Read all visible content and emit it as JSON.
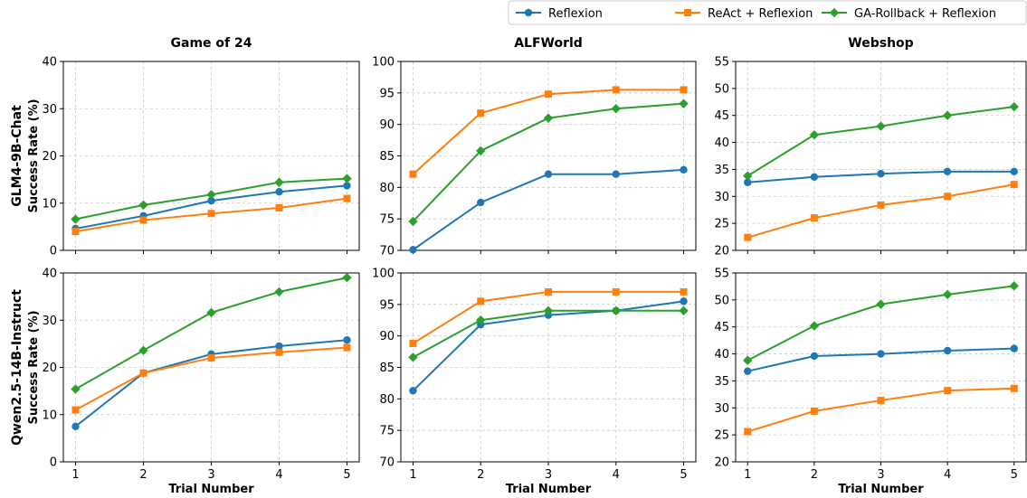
{
  "colors": {
    "Reflexion": "#1f77b4",
    "ReAct + Reflexion": "#ff7f0e",
    "GA-Rollback + Reflexion": "#2ca02c",
    "grid": "#c8c8c8"
  },
  "legend": {
    "placement": "top-right",
    "entries": [
      {
        "name": "Reflexion",
        "marker": "circle"
      },
      {
        "name": "ReAct + Reflexion",
        "marker": "square"
      },
      {
        "name": "GA-Rollback + Reflexion",
        "marker": "diamond"
      }
    ]
  },
  "column_titles": [
    "Game of 24",
    "ALFWorld",
    "Webshop"
  ],
  "row_labels": [
    "GLM4-9B-Chat",
    "Qwen2.5-14B-Instruct"
  ],
  "y_axis_label": "Success Rate (%)",
  "x_axis_label": "Trial Number",
  "chart_data": [
    {
      "type": "line",
      "row": 0,
      "col": 0,
      "grid": true,
      "title": "Game of 24",
      "xlabel": "",
      "ylabel": "Success Rate (%)",
      "x": [
        1,
        2,
        3,
        4,
        5
      ],
      "ylim": [
        0,
        40
      ],
      "yticks": [
        0,
        10,
        20,
        30,
        40
      ],
      "series": [
        {
          "name": "Reflexion",
          "values": [
            4.6,
            7.3,
            10.5,
            12.4,
            13.7
          ]
        },
        {
          "name": "ReAct + Reflexion",
          "values": [
            4.0,
            6.4,
            7.8,
            9.0,
            11.0
          ]
        },
        {
          "name": "GA-Rollback + Reflexion",
          "values": [
            6.6,
            9.6,
            11.8,
            14.4,
            15.2
          ]
        }
      ]
    },
    {
      "type": "line",
      "row": 0,
      "col": 1,
      "grid": true,
      "title": "ALFWorld",
      "xlabel": "",
      "ylabel": "",
      "x": [
        1,
        2,
        3,
        4,
        5
      ],
      "ylim": [
        70,
        100
      ],
      "yticks": [
        70,
        75,
        80,
        85,
        90,
        95,
        100
      ],
      "series": [
        {
          "name": "Reflexion",
          "values": [
            70.1,
            77.6,
            82.1,
            82.1,
            82.8
          ]
        },
        {
          "name": "ReAct + Reflexion",
          "values": [
            82.1,
            91.8,
            94.8,
            95.5,
            95.5
          ]
        },
        {
          "name": "GA-Rollback + Reflexion",
          "values": [
            74.6,
            85.8,
            91.0,
            92.5,
            93.3
          ]
        }
      ]
    },
    {
      "type": "line",
      "row": 0,
      "col": 2,
      "grid": true,
      "title": "Webshop",
      "xlabel": "",
      "ylabel": "",
      "x": [
        1,
        2,
        3,
        4,
        5
      ],
      "ylim": [
        20,
        55
      ],
      "yticks": [
        20,
        25,
        30,
        35,
        40,
        45,
        50,
        55
      ],
      "series": [
        {
          "name": "Reflexion",
          "values": [
            32.6,
            33.6,
            34.2,
            34.6,
            34.6
          ]
        },
        {
          "name": "ReAct + Reflexion",
          "values": [
            22.4,
            26.0,
            28.4,
            30.0,
            32.2
          ]
        },
        {
          "name": "GA-Rollback + Reflexion",
          "values": [
            33.8,
            41.4,
            43.0,
            45.0,
            46.6
          ]
        }
      ]
    },
    {
      "type": "line",
      "row": 1,
      "col": 0,
      "grid": true,
      "title": "",
      "xlabel": "Trial Number",
      "ylabel": "Success Rate (%)",
      "x": [
        1,
        2,
        3,
        4,
        5
      ],
      "ylim": [
        0,
        40
      ],
      "yticks": [
        0,
        10,
        20,
        30,
        40
      ],
      "series": [
        {
          "name": "Reflexion",
          "values": [
            7.5,
            18.8,
            22.8,
            24.5,
            25.8
          ]
        },
        {
          "name": "ReAct + Reflexion",
          "values": [
            11.0,
            18.8,
            22.0,
            23.2,
            24.2
          ]
        },
        {
          "name": "GA-Rollback + Reflexion",
          "values": [
            15.4,
            23.6,
            31.6,
            36.0,
            39.0
          ]
        }
      ]
    },
    {
      "type": "line",
      "row": 1,
      "col": 1,
      "grid": true,
      "title": "",
      "xlabel": "Trial Number",
      "ylabel": "",
      "x": [
        1,
        2,
        3,
        4,
        5
      ],
      "ylim": [
        70,
        100
      ],
      "yticks": [
        70,
        75,
        80,
        85,
        90,
        95,
        100
      ],
      "series": [
        {
          "name": "Reflexion",
          "values": [
            81.3,
            91.8,
            93.3,
            94.0,
            95.5
          ]
        },
        {
          "name": "ReAct + Reflexion",
          "values": [
            88.8,
            95.5,
            97.0,
            97.0,
            97.0
          ]
        },
        {
          "name": "GA-Rollback + Reflexion",
          "values": [
            86.6,
            92.5,
            94.0,
            94.0,
            94.0
          ]
        }
      ]
    },
    {
      "type": "line",
      "row": 1,
      "col": 2,
      "grid": true,
      "title": "",
      "xlabel": "Trial Number",
      "ylabel": "",
      "x": [
        1,
        2,
        3,
        4,
        5
      ],
      "ylim": [
        20,
        55
      ],
      "yticks": [
        20,
        25,
        30,
        35,
        40,
        45,
        50,
        55
      ],
      "series": [
        {
          "name": "Reflexion",
          "values": [
            36.8,
            39.6,
            40.0,
            40.6,
            41.0
          ]
        },
        {
          "name": "ReAct + Reflexion",
          "values": [
            25.6,
            29.4,
            31.4,
            33.2,
            33.6
          ]
        },
        {
          "name": "GA-Rollback + Reflexion",
          "values": [
            38.8,
            45.2,
            49.2,
            51.0,
            52.6
          ]
        }
      ]
    }
  ]
}
